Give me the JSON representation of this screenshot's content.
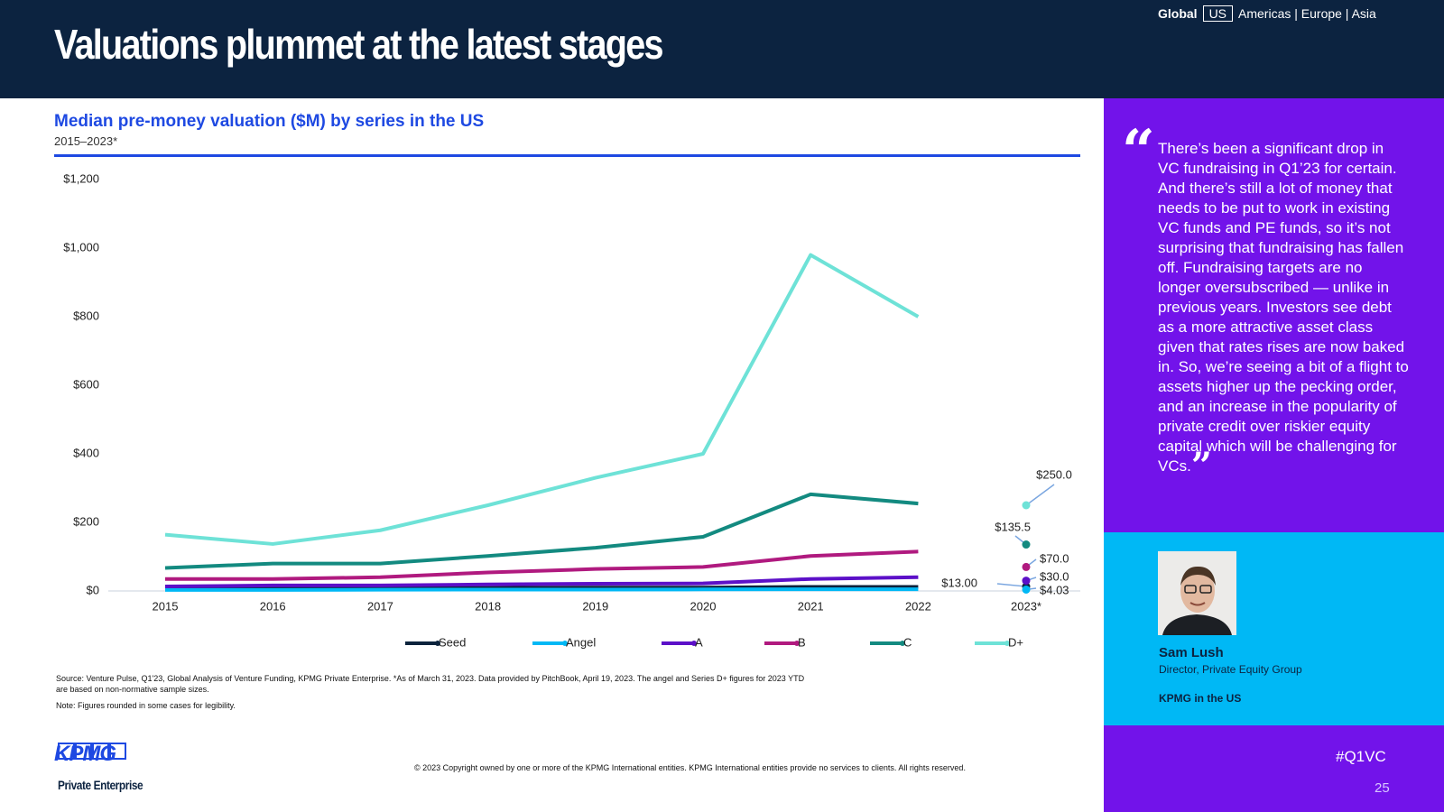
{
  "header": {
    "title": "Valuations plummet at the latest stages",
    "nav": {
      "global": "Global",
      "current": "US",
      "others": "Americas | Europe | Asia"
    }
  },
  "chart_data": {
    "type": "line",
    "title": "Median pre-money valuation ($M) by series in the US",
    "subtitle": "2015–2023*",
    "categories": [
      "2015",
      "2016",
      "2017",
      "2018",
      "2019",
      "2020",
      "2021",
      "2022",
      "2023*"
    ],
    "ylim": [
      0,
      1200
    ],
    "yticks": [
      {
        "value": 0,
        "label": "$0"
      },
      {
        "value": 200,
        "label": "$200"
      },
      {
        "value": 400,
        "label": "$400"
      },
      {
        "value": 600,
        "label": "$600"
      },
      {
        "value": 800,
        "label": "$800"
      },
      {
        "value": 1000,
        "label": "$1,000"
      },
      {
        "value": 1200,
        "label": "$1,200"
      }
    ],
    "grid": false,
    "legend": "bottom",
    "series": [
      {
        "name": "Seed",
        "color": "#0c233c",
        "values": [
          6,
          7,
          8,
          9,
          10,
          10,
          12,
          12,
          13
        ],
        "ytd_label": "$13.00"
      },
      {
        "name": "Angel",
        "color": "#00b8f5",
        "values": [
          3,
          3,
          3.5,
          4,
          4,
          4.5,
          5,
          5,
          4.03
        ],
        "ytd_label": "$4.03"
      },
      {
        "name": "A",
        "color": "#5c10c8",
        "values": [
          13,
          16,
          16,
          19,
          21,
          22,
          35,
          40,
          30
        ],
        "ytd_label": "$30.0"
      },
      {
        "name": "B",
        "color": "#b01a7f",
        "values": [
          35,
          35,
          40,
          54,
          64,
          70,
          102,
          115,
          70
        ],
        "ytd_label": "$70.0"
      },
      {
        "name": "C",
        "color": "#138a80",
        "values": [
          67,
          80,
          80,
          102,
          126,
          158,
          282,
          255,
          135.5
        ],
        "ytd_label": "$135.5"
      },
      {
        "name": "D+",
        "color": "#6ee2d7",
        "values": [
          164,
          137,
          177,
          250,
          330,
          400,
          980,
          800,
          250
        ],
        "ytd_label": "$250.0"
      }
    ]
  },
  "notes": {
    "source": "Source: Venture Pulse, Q1'23, Global Analysis of Venture Funding, KPMG Private Enterprise. *As of March 31, 2023. Data provided by PitchBook, April 19, 2023. The angel and Series D+ figures for 2023 YTD are based on non-normative sample sizes.",
    "note": "Note: Figures rounded in some cases for legibility."
  },
  "quote": {
    "text": "There’s been a significant drop in VC fundraising in Q1’23 for certain. And there’s still a lot of money that needs to be put to work in existing VC funds and PE funds, so it’s not surprising that fundraising has fallen off. Fundraising targets are no longer oversubscribed — unlike in previous years. Investors see debt as a more attractive asset class given that rates rises are now baked in. So, we’re seeing a bit of a flight to assets higher up the pecking order, and an increase in the popularity of private credit over riskier equity capital which will be challenging for VCs.",
    "name": "Sam Lush",
    "role": "Director, Private Equity Group",
    "org": "KPMG in the US"
  },
  "footer": {
    "logo": "KPMG",
    "logo_sub": "Private Enterprise",
    "copyright": "© 2023 Copyright owned by one or more of the KPMG International entities. KPMG International entities provide no services to clients. All rights reserved.",
    "hashtag": "#Q1VC",
    "page": "25"
  }
}
